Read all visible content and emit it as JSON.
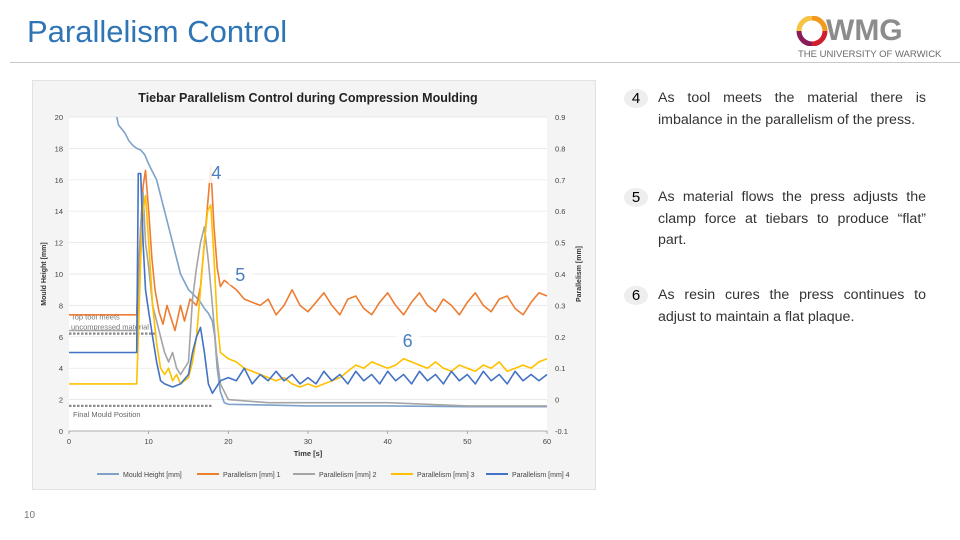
{
  "slide": {
    "title": "Parallelism Control",
    "page_number": "10"
  },
  "logo": {
    "name": "WMG",
    "subtitle": "THE UNIVERSITY OF WARWICK"
  },
  "points": [
    {
      "number": "4",
      "text": "As tool meets the material there is imbalance in the parallelism of the press."
    },
    {
      "number": "5",
      "text": "As material flows the press adjusts the clamp force at tiebars to produce “flat” part."
    },
    {
      "number": "6",
      "text": "As resin cures the press continues to adjust to maintain a flat plaque."
    }
  ],
  "chart_data": {
    "type": "line",
    "title": "Tiebar Parallelism Control during Compression Moulding",
    "xlabel": "Time [s]",
    "ylabel": "Mould Height [mm]",
    "y2label": "Parallelism [mm]",
    "xlim": [
      0,
      60
    ],
    "ylim": [
      0,
      20
    ],
    "y2lim": [
      -0.1,
      0.9
    ],
    "x_ticks": [
      "0",
      "10",
      "20",
      "30",
      "40",
      "50",
      "60"
    ],
    "y_ticks": [
      "0",
      "2",
      "4",
      "6",
      "8",
      "10",
      "12",
      "14",
      "16",
      "18",
      "20"
    ],
    "y2_ticks": [
      "-0.1",
      "0",
      "0.1",
      "0.2",
      "0.3",
      "0.4",
      "0.5",
      "0.6",
      "0.7",
      "0.8",
      "0.9"
    ],
    "colors": {
      "mould": "#7ea1c8",
      "p1": "#ed7d31",
      "p2": "#a5a5a5",
      "p3": "#ffc000",
      "p4": "#4472c4",
      "callout": "#4a7fbf"
    },
    "series": [
      {
        "name": "Mould Height [mm]",
        "axis": "left",
        "color_key": "mould",
        "points": [
          [
            6,
            20
          ],
          [
            6.2,
            19.5
          ],
          [
            7,
            19
          ],
          [
            7.5,
            18.5
          ],
          [
            8,
            18.2
          ],
          [
            8.5,
            18
          ],
          [
            9,
            17.9
          ],
          [
            9.5,
            17.6
          ],
          [
            10,
            17
          ],
          [
            11,
            16
          ],
          [
            12,
            14
          ],
          [
            13,
            12
          ],
          [
            14,
            10
          ],
          [
            15,
            9
          ],
          [
            16,
            8.5
          ],
          [
            16.5,
            8.2
          ],
          [
            17,
            7.8
          ],
          [
            17.5,
            7.5
          ],
          [
            18,
            7
          ],
          [
            18.3,
            6
          ],
          [
            18.6,
            4
          ],
          [
            19,
            2.5
          ],
          [
            19.5,
            1.8
          ],
          [
            20,
            1.7
          ],
          [
            25,
            1.65
          ],
          [
            30,
            1.6
          ],
          [
            40,
            1.6
          ],
          [
            50,
            1.55
          ],
          [
            60,
            1.55
          ]
        ]
      },
      {
        "name": "Parallelism [mm] 1",
        "axis": "right",
        "color_key": "p1",
        "points": [
          [
            0,
            0.27
          ],
          [
            8.5,
            0.27
          ],
          [
            8.7,
            0.4
          ],
          [
            9,
            0.55
          ],
          [
            9.3,
            0.68
          ],
          [
            9.6,
            0.73
          ],
          [
            10,
            0.6
          ],
          [
            10.4,
            0.45
          ],
          [
            10.8,
            0.35
          ],
          [
            11.3,
            0.28
          ],
          [
            11.8,
            0.24
          ],
          [
            12.3,
            0.3
          ],
          [
            12.8,
            0.26
          ],
          [
            13.3,
            0.22
          ],
          [
            14,
            0.3
          ],
          [
            14.5,
            0.25
          ],
          [
            15.2,
            0.32
          ],
          [
            16,
            0.3
          ],
          [
            16.5,
            0.36
          ],
          [
            17,
            0.5
          ],
          [
            17.4,
            0.62
          ],
          [
            17.8,
            0.74
          ],
          [
            18.2,
            0.55
          ],
          [
            18.6,
            0.42
          ],
          [
            19,
            0.36
          ],
          [
            19.5,
            0.38
          ],
          [
            20,
            0.37
          ],
          [
            21,
            0.35
          ],
          [
            22,
            0.32
          ],
          [
            23,
            0.31
          ],
          [
            24,
            0.3
          ],
          [
            25,
            0.32
          ],
          [
            26,
            0.27
          ],
          [
            27,
            0.3
          ],
          [
            28,
            0.35
          ],
          [
            29,
            0.3
          ],
          [
            30,
            0.28
          ],
          [
            31,
            0.31
          ],
          [
            32,
            0.34
          ],
          [
            33,
            0.3
          ],
          [
            34,
            0.27
          ],
          [
            35,
            0.32
          ],
          [
            36,
            0.33
          ],
          [
            37,
            0.29
          ],
          [
            38,
            0.27
          ],
          [
            39,
            0.31
          ],
          [
            40,
            0.34
          ],
          [
            41,
            0.3
          ],
          [
            42,
            0.27
          ],
          [
            43,
            0.31
          ],
          [
            44,
            0.34
          ],
          [
            45,
            0.3
          ],
          [
            46,
            0.28
          ],
          [
            47,
            0.32
          ],
          [
            48,
            0.3
          ],
          [
            49,
            0.27
          ],
          [
            50,
            0.31
          ],
          [
            51,
            0.34
          ],
          [
            52,
            0.3
          ],
          [
            53,
            0.28
          ],
          [
            54,
            0.32
          ],
          [
            55,
            0.33
          ],
          [
            56,
            0.29
          ],
          [
            57,
            0.27
          ],
          [
            58,
            0.31
          ],
          [
            59,
            0.34
          ],
          [
            60,
            0.33
          ]
        ]
      },
      {
        "name": "Parallelism [mm] 2",
        "axis": "right",
        "color_key": "p2",
        "points": [
          [
            0,
            0.22
          ],
          [
            8.5,
            0.22
          ],
          [
            8.7,
            0.3
          ],
          [
            9,
            0.55
          ],
          [
            9.3,
            0.66
          ],
          [
            9.6,
            0.5
          ],
          [
            10,
            0.42
          ],
          [
            10.5,
            0.3
          ],
          [
            11,
            0.25
          ],
          [
            11.5,
            0.2
          ],
          [
            12,
            0.15
          ],
          [
            12.5,
            0.12
          ],
          [
            13,
            0.15
          ],
          [
            13.5,
            0.1
          ],
          [
            14,
            0.08
          ],
          [
            15,
            0.12
          ],
          [
            15.5,
            0.32
          ],
          [
            16,
            0.42
          ],
          [
            16.5,
            0.5
          ],
          [
            17,
            0.55
          ],
          [
            17.5,
            0.44
          ],
          [
            18,
            0.3
          ],
          [
            18.5,
            0.15
          ],
          [
            19,
            0.05
          ],
          [
            20,
            0.0
          ],
          [
            25,
            -0.01
          ],
          [
            30,
            -0.01
          ],
          [
            40,
            -0.01
          ],
          [
            50,
            -0.02
          ],
          [
            60,
            -0.02
          ]
        ]
      },
      {
        "name": "Parallelism [mm] 3",
        "axis": "right",
        "color_key": "p3",
        "points": [
          [
            0,
            0.05
          ],
          [
            8.5,
            0.05
          ],
          [
            8.7,
            0.2
          ],
          [
            9,
            0.45
          ],
          [
            9.3,
            0.6
          ],
          [
            9.6,
            0.65
          ],
          [
            10,
            0.5
          ],
          [
            10.5,
            0.3
          ],
          [
            11,
            0.18
          ],
          [
            11.5,
            0.1
          ],
          [
            12,
            0.08
          ],
          [
            12.5,
            0.1
          ],
          [
            13,
            0.06
          ],
          [
            13.5,
            0.08
          ],
          [
            14,
            0.05
          ],
          [
            15,
            0.07
          ],
          [
            15.5,
            0.12
          ],
          [
            16,
            0.2
          ],
          [
            16.5,
            0.35
          ],
          [
            17,
            0.5
          ],
          [
            17.4,
            0.6
          ],
          [
            17.8,
            0.62
          ],
          [
            18.2,
            0.45
          ],
          [
            18.6,
            0.25
          ],
          [
            19,
            0.15
          ],
          [
            20,
            0.13
          ],
          [
            21,
            0.12
          ],
          [
            22,
            0.1
          ],
          [
            23,
            0.09
          ],
          [
            24,
            0.08
          ],
          [
            25,
            0.07
          ],
          [
            26,
            0.06
          ],
          [
            27,
            0.07
          ],
          [
            28,
            0.05
          ],
          [
            29,
            0.04
          ],
          [
            30,
            0.05
          ],
          [
            31,
            0.04
          ],
          [
            32,
            0.05
          ],
          [
            33,
            0.06
          ],
          [
            34,
            0.07
          ],
          [
            35,
            0.09
          ],
          [
            36,
            0.11
          ],
          [
            37,
            0.1
          ],
          [
            38,
            0.12
          ],
          [
            39,
            0.11
          ],
          [
            40,
            0.1
          ],
          [
            41,
            0.11
          ],
          [
            42,
            0.13
          ],
          [
            43,
            0.12
          ],
          [
            44,
            0.11
          ],
          [
            45,
            0.1
          ],
          [
            46,
            0.12
          ],
          [
            47,
            0.1
          ],
          [
            48,
            0.09
          ],
          [
            49,
            0.11
          ],
          [
            50,
            0.1
          ],
          [
            51,
            0.09
          ],
          [
            52,
            0.11
          ],
          [
            53,
            0.1
          ],
          [
            54,
            0.12
          ],
          [
            55,
            0.09
          ],
          [
            56,
            0.1
          ],
          [
            57,
            0.11
          ],
          [
            58,
            0.1
          ],
          [
            59,
            0.12
          ],
          [
            60,
            0.13
          ]
        ]
      },
      {
        "name": "Parallelism [mm] 4",
        "axis": "right",
        "color_key": "p4",
        "points": [
          [
            0,
            0.15
          ],
          [
            8.5,
            0.15
          ],
          [
            8.7,
            0.72
          ],
          [
            9,
            0.72
          ],
          [
            9.3,
            0.5
          ],
          [
            9.6,
            0.35
          ],
          [
            10,
            0.28
          ],
          [
            10.5,
            0.2
          ],
          [
            11,
            0.12
          ],
          [
            11.5,
            0.06
          ],
          [
            12,
            0.05
          ],
          [
            13,
            0.04
          ],
          [
            14,
            0.05
          ],
          [
            15,
            0.08
          ],
          [
            15.5,
            0.15
          ],
          [
            16,
            0.2
          ],
          [
            16.5,
            0.23
          ],
          [
            17,
            0.15
          ],
          [
            17.5,
            0.05
          ],
          [
            18,
            0.02
          ],
          [
            19,
            0.06
          ],
          [
            20,
            0.07
          ],
          [
            21,
            0.06
          ],
          [
            22,
            0.1
          ],
          [
            23,
            0.05
          ],
          [
            24,
            0.08
          ],
          [
            25,
            0.06
          ],
          [
            26,
            0.09
          ],
          [
            27,
            0.06
          ],
          [
            28,
            0.08
          ],
          [
            29,
            0.05
          ],
          [
            30,
            0.07
          ],
          [
            31,
            0.05
          ],
          [
            32,
            0.09
          ],
          [
            33,
            0.06
          ],
          [
            34,
            0.08
          ],
          [
            35,
            0.05
          ],
          [
            36,
            0.09
          ],
          [
            37,
            0.06
          ],
          [
            38,
            0.08
          ],
          [
            39,
            0.05
          ],
          [
            40,
            0.09
          ],
          [
            41,
            0.06
          ],
          [
            42,
            0.08
          ],
          [
            43,
            0.05
          ],
          [
            44,
            0.09
          ],
          [
            45,
            0.06
          ],
          [
            46,
            0.08
          ],
          [
            47,
            0.05
          ],
          [
            48,
            0.09
          ],
          [
            49,
            0.06
          ],
          [
            50,
            0.08
          ],
          [
            51,
            0.05
          ],
          [
            52,
            0.09
          ],
          [
            53,
            0.06
          ],
          [
            54,
            0.08
          ],
          [
            55,
            0.05
          ],
          [
            56,
            0.09
          ],
          [
            57,
            0.06
          ],
          [
            58,
            0.08
          ],
          [
            59,
            0.06
          ],
          [
            60,
            0.08
          ]
        ]
      }
    ],
    "reference_lines": [
      {
        "label": "Top tool meets uncompressed material",
        "y": 6.2,
        "x_from": 0,
        "x_to": 11
      },
      {
        "label": "Final Mould Position",
        "y": 1.6,
        "x_from": 0,
        "x_to": 18
      }
    ],
    "callouts": [
      {
        "label": "4",
        "x": 18.5,
        "y": 16.5
      },
      {
        "label": "5",
        "x": 21.5,
        "y": 10
      },
      {
        "label": "6",
        "x": 42.5,
        "y": 5.8
      }
    ],
    "legend": {
      "position": "bottom",
      "entries": [
        "Mould Height [mm]",
        "Parallelism [mm] 1",
        "Parallelism [mm] 2",
        "Parallelism [mm] 3",
        "Parallelism [mm] 4"
      ]
    }
  }
}
